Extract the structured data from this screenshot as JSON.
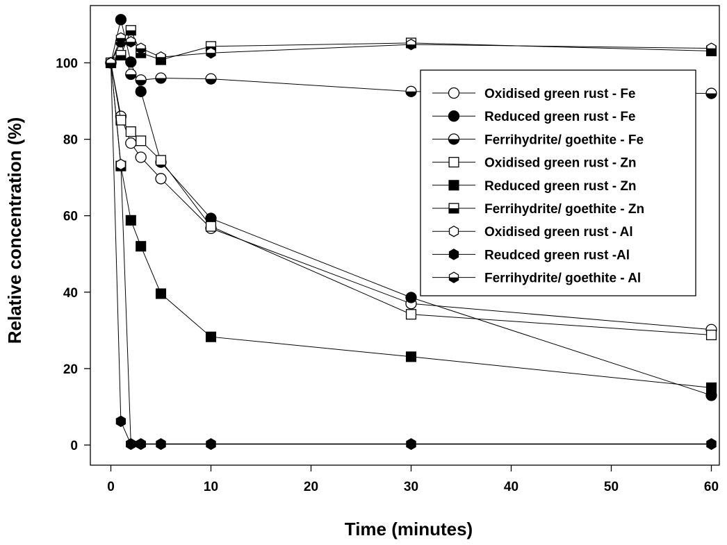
{
  "chart_data": {
    "type": "line",
    "xlabel": "Time (minutes)",
    "ylabel": "Relative concentration (%)",
    "xlim": [
      -2,
      62
    ],
    "ylim": [
      -5,
      115
    ],
    "xticks": [
      0,
      10,
      20,
      30,
      40,
      50,
      60
    ],
    "yticks": [
      0,
      20,
      40,
      60,
      80,
      100
    ],
    "grid": false,
    "legend_position": "right",
    "series": [
      {
        "name": "Oxidised green rust - Fe",
        "marker": "circle-open",
        "points": [
          [
            0,
            100
          ],
          [
            1,
            86
          ],
          [
            2,
            79
          ],
          [
            3,
            75.3
          ],
          [
            5,
            69.7
          ],
          [
            10,
            56.7
          ],
          [
            30,
            37
          ],
          [
            60,
            30.2
          ]
        ]
      },
      {
        "name": "Reduced green rust - Fe",
        "marker": "circle-filled",
        "points": [
          [
            0,
            100
          ],
          [
            1,
            111.3
          ],
          [
            2,
            100.2
          ],
          [
            3,
            92.5
          ],
          [
            5,
            74
          ],
          [
            10,
            59.3
          ],
          [
            30,
            38.6
          ],
          [
            60,
            13
          ]
        ]
      },
      {
        "name": "Ferrihydrite/ goethite - Fe",
        "marker": "circle-half",
        "points": [
          [
            0,
            100
          ],
          [
            1,
            105.5
          ],
          [
            2,
            97
          ],
          [
            3,
            95.5
          ],
          [
            5,
            96
          ],
          [
            10,
            95.8
          ],
          [
            30,
            92.5
          ],
          [
            60,
            92
          ]
        ]
      },
      {
        "name": "Oxidised green rust - Zn",
        "marker": "square-open",
        "points": [
          [
            0,
            100
          ],
          [
            1,
            85
          ],
          [
            2,
            82
          ],
          [
            3,
            79.6
          ],
          [
            5,
            74.5
          ],
          [
            10,
            57.2
          ],
          [
            30,
            34.2
          ],
          [
            60,
            28.8
          ]
        ]
      },
      {
        "name": "Reduced green rust - Zn",
        "marker": "square-filled",
        "points": [
          [
            0,
            100
          ],
          [
            1,
            73
          ],
          [
            2,
            58.8
          ],
          [
            3,
            52
          ],
          [
            5,
            39.6
          ],
          [
            10,
            28.3
          ],
          [
            30,
            23.1
          ],
          [
            60,
            15
          ]
        ]
      },
      {
        "name": "Ferrihydrite/ goethite - Zn",
        "marker": "square-half",
        "points": [
          [
            0,
            100
          ],
          [
            1,
            102
          ],
          [
            2,
            108.5
          ],
          [
            3,
            102.6
          ],
          [
            5,
            100.8
          ],
          [
            10,
            104.3
          ],
          [
            30,
            105.2
          ],
          [
            60,
            103.1
          ]
        ]
      },
      {
        "name": "Oxidised green rust - Al",
        "marker": "hexagon-open",
        "points": [
          [
            0,
            100
          ],
          [
            1,
            73.4
          ],
          [
            2,
            0.3
          ],
          [
            3,
            0.3
          ],
          [
            5,
            0.3
          ],
          [
            10,
            0.3
          ],
          [
            30,
            0.3
          ],
          [
            60,
            0.3
          ]
        ]
      },
      {
        "name": "Reudced green rust -Al",
        "marker": "hexagon-filled",
        "points": [
          [
            0,
            100
          ],
          [
            1,
            6.2
          ],
          [
            2,
            0.2
          ],
          [
            3,
            0.2
          ],
          [
            5,
            0.2
          ],
          [
            10,
            0.2
          ],
          [
            30,
            0.2
          ],
          [
            60,
            0.2
          ]
        ]
      },
      {
        "name": "Ferrihydrite/ goethite - Al",
        "marker": "hexagon-half",
        "points": [
          [
            0,
            100
          ],
          [
            1,
            106.5
          ],
          [
            2,
            105.5
          ],
          [
            3,
            103.8
          ],
          [
            5,
            101.5
          ],
          [
            10,
            102.6
          ],
          [
            30,
            104.8
          ],
          [
            60,
            103.8
          ]
        ]
      }
    ]
  }
}
